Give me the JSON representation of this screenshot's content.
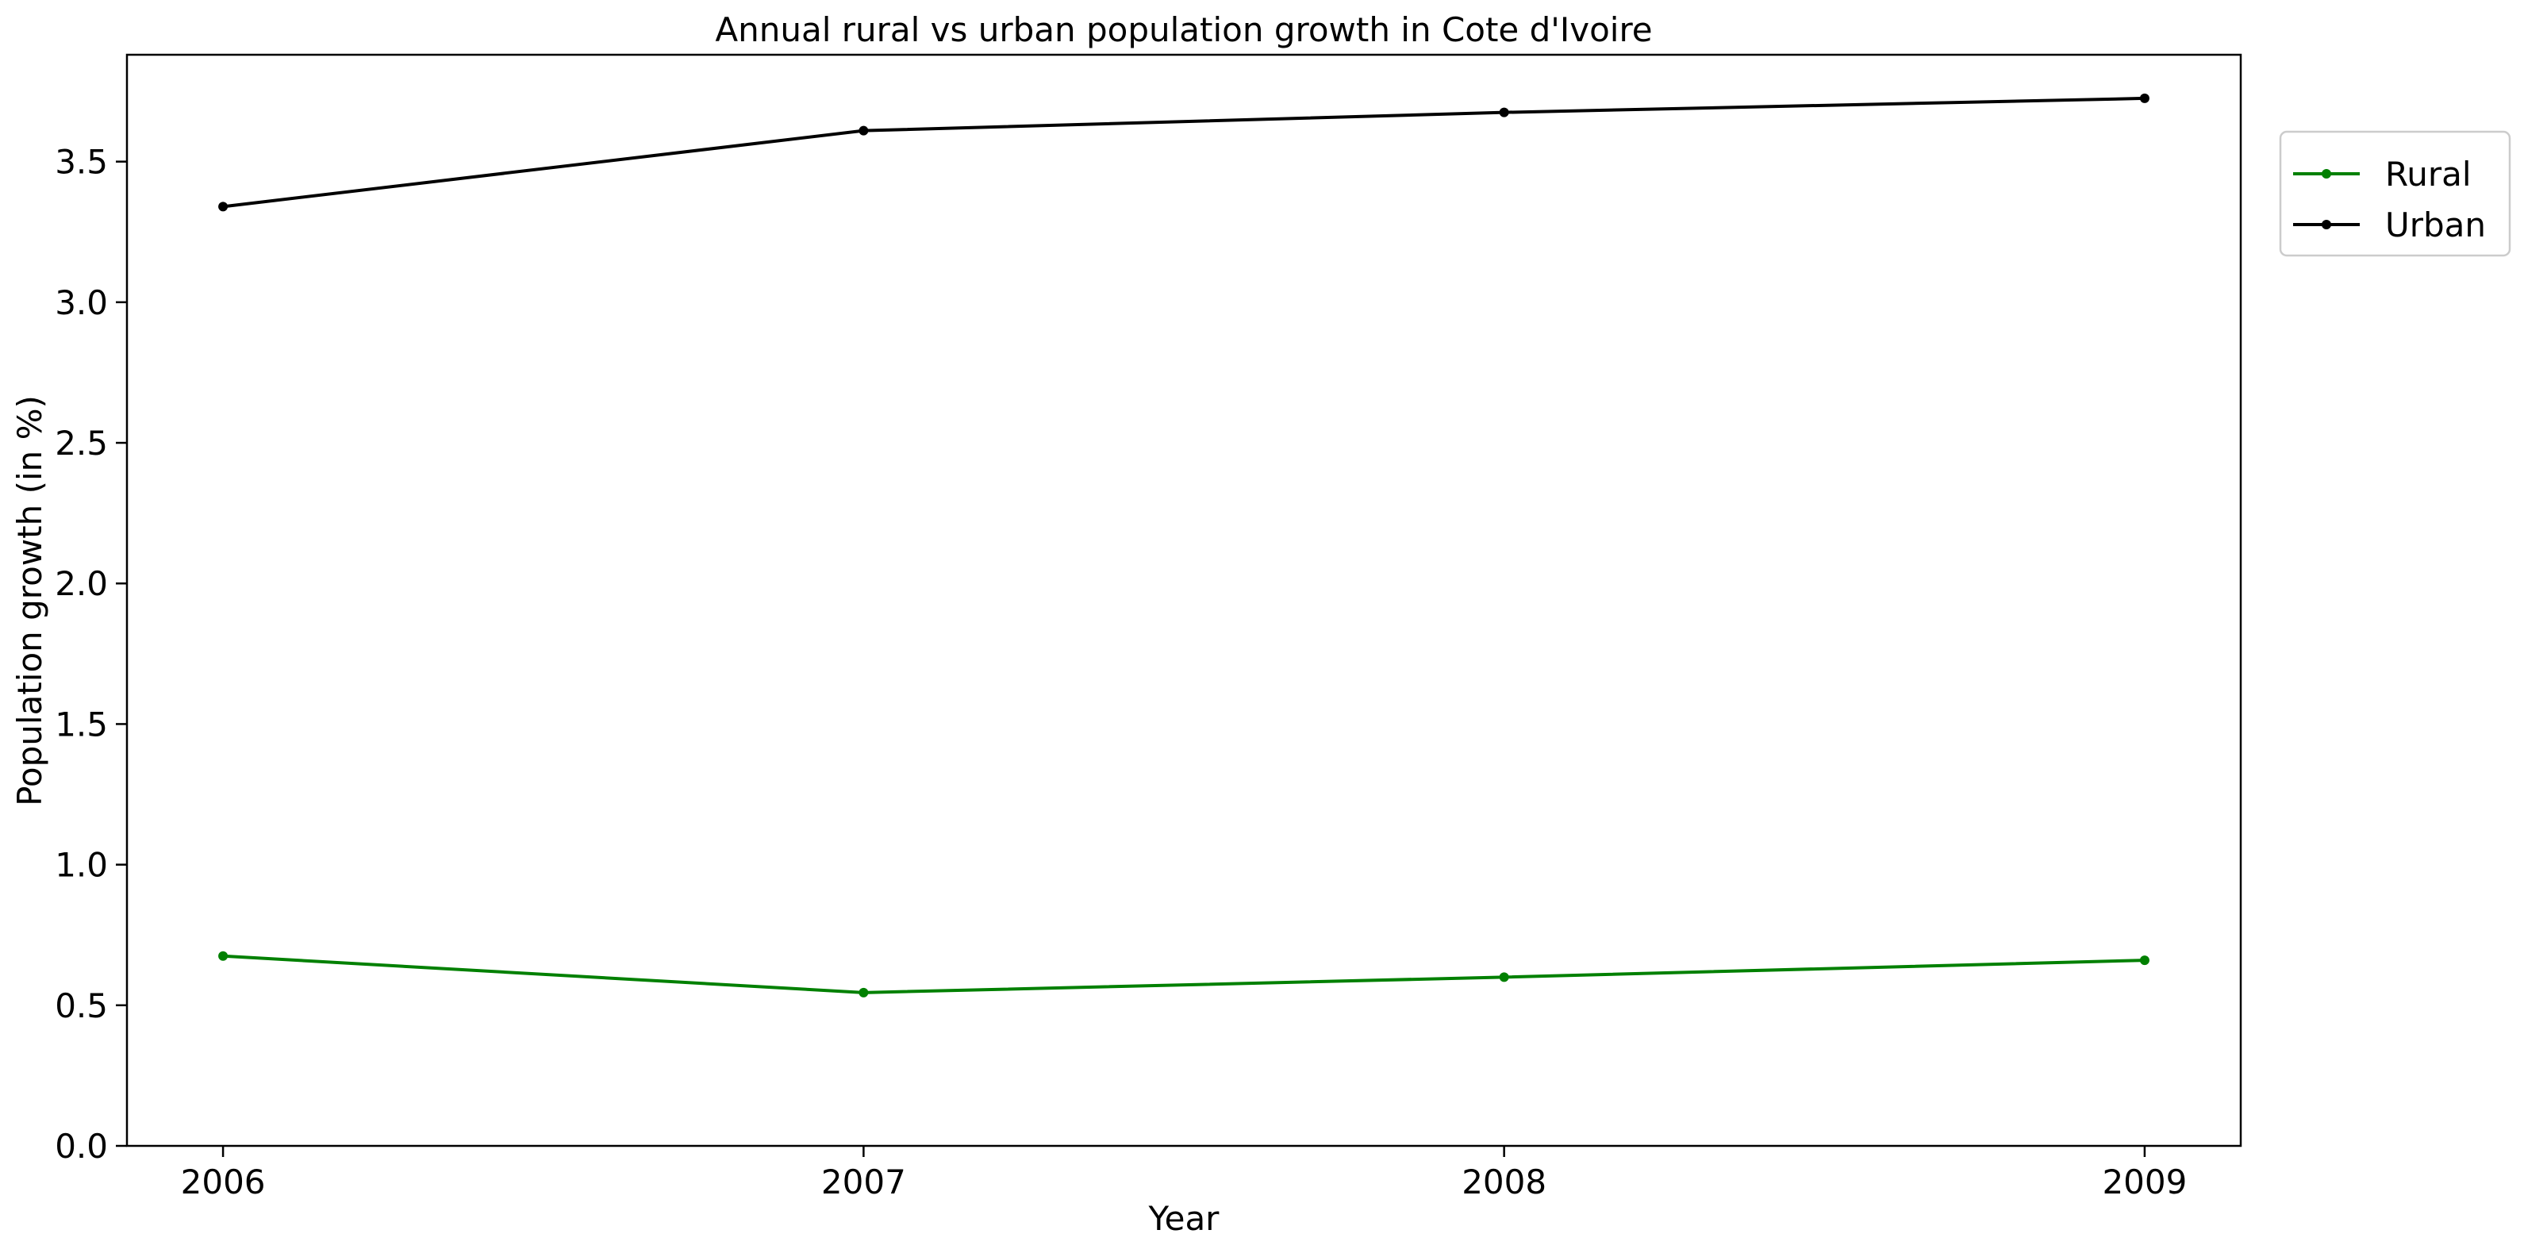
{
  "chart_data": {
    "type": "line",
    "title": "Annual rural vs urban population growth in Cote d'Ivoire",
    "xlabel": "Year",
    "ylabel": "Population growth (in %)",
    "categories": [
      "2006",
      "2007",
      "2008",
      "2009"
    ],
    "x_ticks": [
      "2006",
      "2007",
      "2008",
      "2009"
    ],
    "y_ticks": [
      "0.0",
      "0.5",
      "1.0",
      "1.5",
      "2.0",
      "2.5",
      "3.0",
      "3.5"
    ],
    "ylim": [
      0,
      3.88
    ],
    "grid": false,
    "legend_position": "outside-top-right",
    "series": [
      {
        "name": "Rural",
        "color": "#008000",
        "values": [
          0.675,
          0.545,
          0.6,
          0.66
        ]
      },
      {
        "name": "Urban",
        "color": "#000000",
        "values": [
          3.34,
          3.61,
          3.675,
          3.725
        ]
      }
    ]
  }
}
